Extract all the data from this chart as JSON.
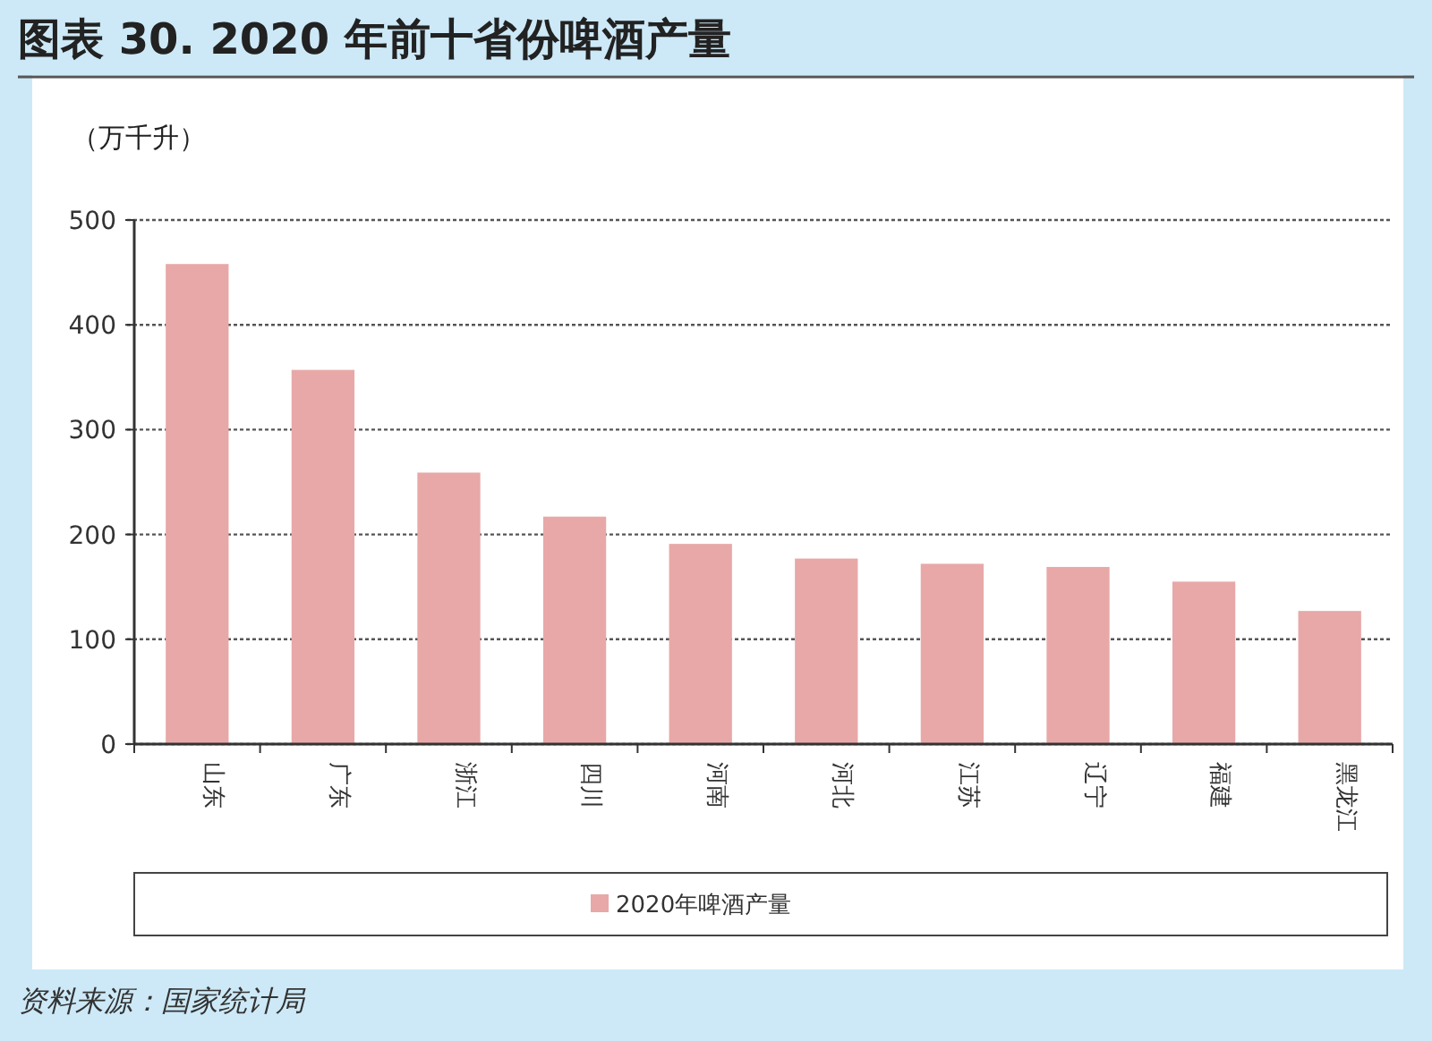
{
  "chart_data": {
    "type": "bar",
    "title": "图表 30. 2020 年前十省份啤酒产量",
    "ylabel": "（万千升）",
    "categories": [
      "山东",
      "广东",
      "浙江",
      "四川",
      "河南",
      "河北",
      "江苏",
      "辽宁",
      "福建",
      "黑龙江"
    ],
    "series": [
      {
        "name": "2020年啤酒产量",
        "color": "#e8a8a8",
        "values": [
          458,
          357,
          259,
          217,
          191,
          177,
          172,
          169,
          155,
          127
        ]
      }
    ],
    "ylim": [
      0,
      500
    ],
    "yticks": [
      0,
      100,
      200,
      300,
      400,
      500
    ],
    "grid": "y",
    "legend": "bottom",
    "annotations": [
      "资料来源：国家统计局"
    ]
  }
}
